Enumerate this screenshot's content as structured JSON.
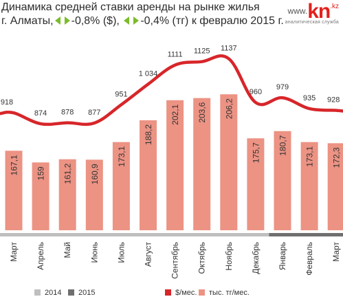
{
  "header": {
    "title": "Динамика средней ставки аренды на рынке жилья",
    "city": "г. Алматы,",
    "usd_change": "-0,8% ($),",
    "kzt_change": "-0,4% (тг) к февралю 2015 г."
  },
  "logo": {
    "www": "www.",
    "kn": "kn",
    "kz": ".kz",
    "subtitle": "аналитическая служба"
  },
  "colors": {
    "line": "#d7262a",
    "bar": "#ec9384",
    "year_2014": "#bfbfbf",
    "year_2015": "#6f6f6f",
    "arrow_green": "#7cbb2a"
  },
  "chart_data": {
    "type": "bar",
    "categories": [
      "Март",
      "Апрель",
      "Май",
      "Июнь",
      "Июль",
      "Август",
      "Сентябрь",
      "Октябрь",
      "Ноябрь",
      "Декабрь",
      "Январь",
      "Февраль",
      "Март"
    ],
    "series": [
      {
        "name": "тыс. тг/мес.",
        "type": "bar",
        "values": [
          167.1,
          159,
          161.2,
          160.9,
          173.1,
          188.2,
          202.1,
          203.6,
          206.2,
          175.7,
          180.7,
          173.1,
          172.3
        ],
        "labels": [
          "167,1",
          "159",
          "161,2",
          "160,9",
          "173,1",
          "188,2",
          "202,1",
          "203,6",
          "206,2",
          "175,7",
          "180,7",
          "173,1",
          "172,3"
        ]
      },
      {
        "name": "$/мес.",
        "type": "line",
        "values": [
          918,
          874,
          878,
          877,
          951,
          1034,
          1111,
          1125,
          1137,
          960,
          979,
          935,
          928
        ],
        "labels": [
          "918",
          "874",
          "878",
          "877",
          "951",
          "1 034",
          "1111",
          "1125",
          "1137",
          "960",
          "979",
          "935",
          "928"
        ]
      }
    ],
    "years": [
      {
        "name": "2014",
        "from": 0,
        "to": 9
      },
      {
        "name": "2015",
        "from": 10,
        "to": 12
      }
    ],
    "legend": {
      "year_2014": "2014",
      "year_2015": "2015",
      "usd": "$/мес.",
      "kzt": "тыс. тг/мес."
    },
    "legend_position": "bottom",
    "grid": false
  }
}
